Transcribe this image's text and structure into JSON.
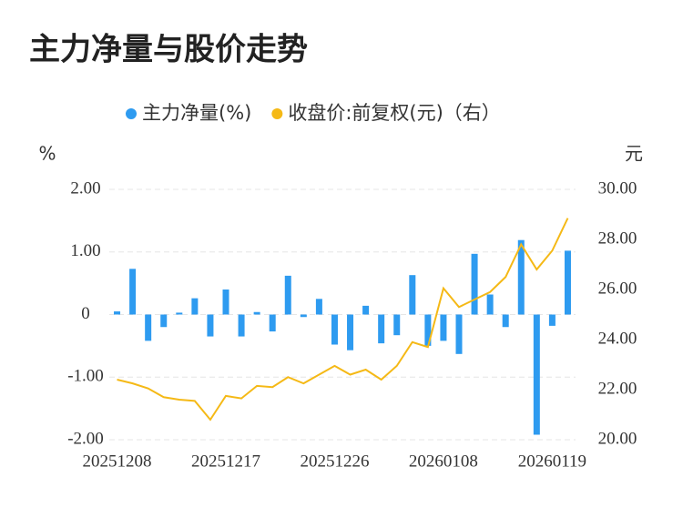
{
  "chart_data": {
    "type": "bar_line",
    "title": "主力净量与股价走势",
    "y_label": "%",
    "y2_label": "元",
    "categories": [
      "20251208",
      null,
      null,
      null,
      null,
      null,
      null,
      "20251217",
      null,
      null,
      null,
      null,
      null,
      null,
      "20251226",
      null,
      null,
      null,
      null,
      null,
      null,
      "20260108",
      null,
      null,
      null,
      null,
      null,
      null,
      "20260119",
      null
    ],
    "series": [
      {
        "name": "主力净量(%)",
        "color": "#2e9bf0",
        "type": "bar",
        "values": [
          0.05,
          0.73,
          -0.42,
          -0.2,
          0.03,
          0.26,
          -0.35,
          0.4,
          -0.35,
          0.04,
          -0.27,
          0.62,
          -0.04,
          0.25,
          -0.48,
          -0.57,
          0.14,
          -0.46,
          -0.33,
          0.63,
          -0.5,
          -0.42,
          -0.63,
          0.97,
          0.32,
          -0.2,
          1.19,
          -1.92,
          -0.18,
          1.02
        ]
      },
      {
        "name": "收盘价:前复权(元)（右）",
        "color": "#f5b916",
        "type": "line",
        "axis": "y2",
        "values": [
          22.4,
          22.25,
          22.05,
          21.7,
          21.6,
          21.55,
          20.8,
          21.75,
          21.65,
          22.15,
          22.1,
          22.5,
          22.25,
          22.6,
          22.95,
          22.6,
          22.8,
          22.4,
          22.95,
          23.9,
          23.7,
          26.05,
          25.3,
          25.6,
          25.9,
          26.5,
          27.8,
          26.8,
          27.55,
          28.85
        ]
      }
    ],
    "ylim": [
      -2,
      2
    ],
    "yticks": [
      {
        "value": 2,
        "label": "2.00"
      },
      {
        "value": 1,
        "label": "1.00"
      },
      0,
      {
        "value": -1,
        "label": "-1.00"
      },
      {
        "value": -2,
        "label": "-2.00"
      }
    ],
    "y2lim": [
      20,
      30
    ],
    "y2ticks": [
      {
        "value": 30,
        "label": "30.00"
      },
      {
        "value": 28,
        "label": "28.00"
      },
      {
        "value": 26,
        "label": "26.00"
      },
      {
        "value": 24,
        "label": "24.00"
      },
      {
        "value": 22,
        "label": "22.00"
      },
      {
        "value": 20,
        "label": "20.00"
      }
    ],
    "grid": true
  }
}
